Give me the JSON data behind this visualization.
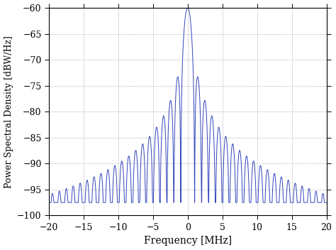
{
  "xlabel": "Frequency [MHz]",
  "ylabel": "Power Spectral Density [dBW/Hz]",
  "xlim": [
    -20,
    20
  ],
  "ylim": [
    -100,
    -60
  ],
  "yticks": [
    -100,
    -95,
    -90,
    -85,
    -80,
    -75,
    -70,
    -65,
    -60
  ],
  "xticks": [
    -20,
    -15,
    -10,
    -5,
    0,
    5,
    10,
    15,
    20
  ],
  "line_color": "#3344bb",
  "chip_rate_MHz": 1.0,
  "noise_floor_dB": -97.5,
  "peak_dB": -60.0,
  "grid_color": "#999999",
  "bg_color": "#ffffff",
  "figsize": [
    4.74,
    3.52
  ],
  "dpi": 100
}
